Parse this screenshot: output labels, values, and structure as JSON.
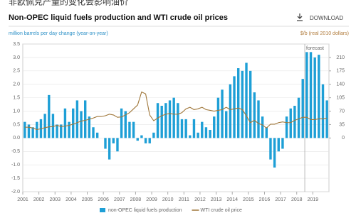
{
  "header": "非欧佩克产量的变化会影响油价",
  "download": "DOWNLOAD",
  "chart_data": {
    "type": "bar-line",
    "title": "Non-OPEC liquid fuels production and WTI crude oil prices",
    "y_label": "million barrels per day change (year-on-year)",
    "y2_label": "$/b (real 2010 dollars)",
    "annotation": "forecast",
    "forecast_start": 2018.5,
    "xlim": [
      2001,
      2020
    ],
    "xticks": [
      2001,
      2002,
      2003,
      2004,
      2005,
      2006,
      2007,
      2008,
      2009,
      2010,
      2011,
      2012,
      2013,
      2014,
      2015,
      2016,
      2017,
      2018,
      2019
    ],
    "ylim": [
      -2,
      3.5
    ],
    "yticks": [
      {
        "value": -2,
        "label": "-2.0"
      },
      {
        "value": -1.5,
        "label": "-1.5"
      },
      {
        "value": -1,
        "label": "-1.0"
      },
      {
        "value": -0.5,
        "label": "-0.5"
      },
      {
        "value": 0,
        "label": "0.0"
      },
      0.5,
      {
        "value": 1,
        "label": "1.0"
      },
      1.5,
      {
        "value": 2,
        "label": "2.0"
      },
      2.5,
      {
        "value": 3,
        "label": "3.0"
      },
      3.5
    ],
    "y2lim": [
      -140,
      245
    ],
    "y2ticks": [
      0,
      35,
      70,
      105,
      140,
      175,
      210
    ],
    "grid": true,
    "x": [
      2001,
      2001.25,
      2001.5,
      2001.75,
      2002,
      2002.25,
      2002.5,
      2002.75,
      2003,
      2003.25,
      2003.5,
      2003.75,
      2004,
      2004.25,
      2004.5,
      2004.75,
      2005,
      2005.25,
      2005.5,
      2005.75,
      2006,
      2006.25,
      2006.5,
      2006.75,
      2007,
      2007.25,
      2007.5,
      2007.75,
      2008,
      2008.25,
      2008.5,
      2008.75,
      2009,
      2009.25,
      2009.5,
      2009.75,
      2010,
      2010.25,
      2010.5,
      2010.75,
      2011,
      2011.25,
      2011.5,
      2011.75,
      2012,
      2012.25,
      2012.5,
      2012.75,
      2013,
      2013.25,
      2013.5,
      2013.75,
      2014,
      2014.25,
      2014.5,
      2014.75,
      2015,
      2015.25,
      2015.5,
      2015.75,
      2016,
      2016.25,
      2016.5,
      2016.75,
      2017,
      2017.25,
      2017.5,
      2017.75,
      2018,
      2018.25,
      2018.5,
      2018.75,
      2019,
      2019.25,
      2019.5,
      2019.75
    ],
    "series": [
      {
        "name": "non-OPEC liquid fuels production",
        "color": "#1e9fd6",
        "values": [
          0.6,
          0.5,
          0.4,
          0.6,
          0.7,
          0.9,
          1.6,
          0.9,
          0.5,
          0.5,
          1.1,
          0.6,
          1.1,
          1.4,
          1.0,
          1.4,
          0.8,
          0.4,
          0.2,
          0.0,
          -0.4,
          -0.8,
          -0.2,
          -0.5,
          1.1,
          1.0,
          0.6,
          0.6,
          -0.1,
          0.1,
          -0.2,
          -0.2,
          0.2,
          1.3,
          1.2,
          1.3,
          1.4,
          1.5,
          1.3,
          0.7,
          0.7,
          0.1,
          0.7,
          0.2,
          0.6,
          0.4,
          0.3,
          0.8,
          1.5,
          1.8,
          1.0,
          2.0,
          2.3,
          2.6,
          2.5,
          2.8,
          2.5,
          1.7,
          1.4,
          0.8,
          0.4,
          -0.8,
          -1.1,
          -0.5,
          -0.4,
          0.8,
          1.1,
          1.2,
          1.5,
          2.2,
          3.2,
          3.2,
          3.0,
          3.1,
          2.0,
          1.4
        ]
      },
      {
        "name": "WTI crude oil price",
        "color": "#a0773a",
        "axis": "y2",
        "values": [
          28,
          28,
          26,
          22,
          24,
          27,
          29,
          30,
          33,
          30,
          31,
          33,
          36,
          40,
          44,
          46,
          49,
          52,
          56,
          56,
          58,
          62,
          60,
          54,
          55,
          60,
          66,
          76,
          86,
          120,
          115,
          60,
          45,
          52,
          58,
          62,
          64,
          62,
          62,
          66,
          76,
          80,
          74,
          76,
          80,
          74,
          72,
          70,
          72,
          74,
          80,
          74,
          76,
          78,
          74,
          58,
          40,
          46,
          38,
          34,
          26,
          36,
          36,
          40,
          42,
          40,
          40,
          46,
          50,
          54,
          54,
          48,
          48,
          50,
          50,
          52
        ]
      }
    ]
  }
}
